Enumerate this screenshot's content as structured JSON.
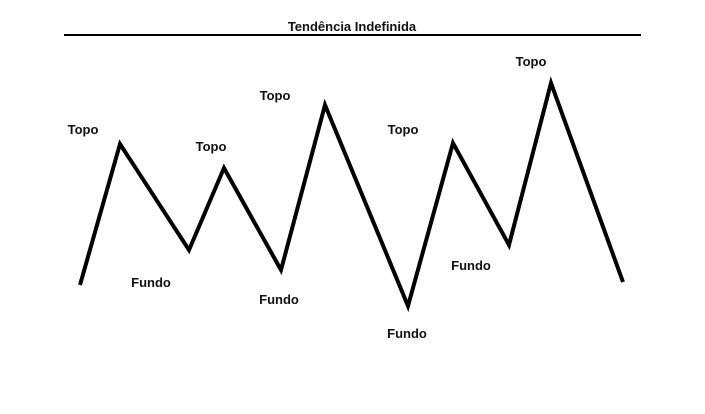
{
  "title": "Tendência Indefinida",
  "colors": {
    "line": "#000000",
    "text": "#111111",
    "background": "#ffffff"
  },
  "labels": {
    "top": "Topo",
    "bottom": "Fundo"
  },
  "path_points": [
    {
      "kind": "start"
    },
    {
      "kind": "top"
    },
    {
      "kind": "bottom"
    },
    {
      "kind": "top"
    },
    {
      "kind": "bottom"
    },
    {
      "kind": "top"
    },
    {
      "kind": "bottom"
    },
    {
      "kind": "top"
    },
    {
      "kind": "bottom"
    },
    {
      "kind": "top"
    },
    {
      "kind": "end"
    }
  ]
}
